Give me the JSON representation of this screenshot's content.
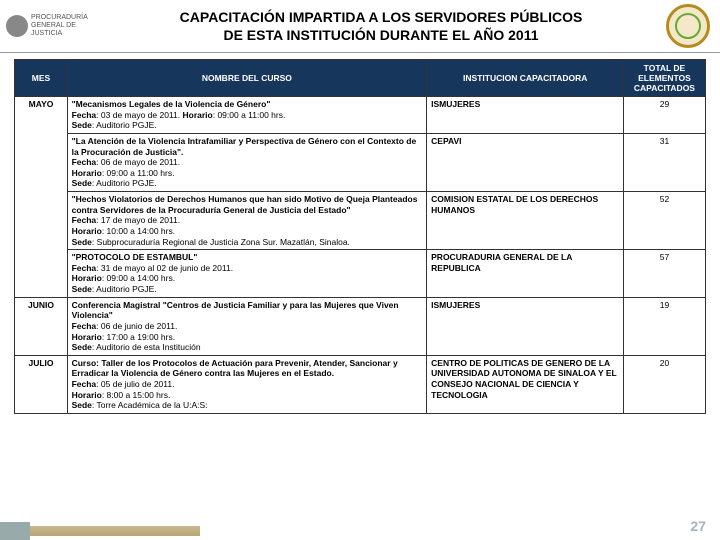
{
  "header": {
    "org": "PROCURADURÍA GENERAL DE JUSTICIA",
    "title_line1": "CAPACITACIÓN IMPARTIDA A LOS SERVIDORES PÚBLICOS",
    "title_line2": "DE ESTA INSTITUCIÓN DURANTE EL AÑO 2011"
  },
  "columns": {
    "mes": "MES",
    "curso": "NOMBRE DEL CURSO",
    "inst": "INSTITUCION CAPACITADORA",
    "total": "TOTAL DE ELEMENTOS CAPACITADOS"
  },
  "rows": [
    {
      "mes": "MAYO",
      "items": [
        {
          "title": "\"Mecanismos Legales de la Violencia de Género\"",
          "fecha": "Fecha: 03 de mayo de 2011. Horario: 09:00 a 11:00 hrs.",
          "sede": "Sede: Auditorio PGJE.",
          "inst": "ISMUJERES",
          "total": "29"
        },
        {
          "title": "\"La Atención de la Violencia Intrafamiliar y Perspectiva de Género con el Contexto de la Procuración de Justicia\".",
          "fecha": "Fecha: 06 de mayo de 2011.",
          "horario": "Horario: 09:00 a 11:00 hrs.",
          "sede": "Sede: Auditorio PGJE.",
          "inst": "CEPAVI",
          "total": "31"
        },
        {
          "title": "\"Hechos Violatorios de Derechos Humanos que han sido Motivo de Queja Planteados contra Servidores de la Procuraduría General de Justicia del Estado\"",
          "fecha": "Fecha: 17 de mayo de 2011.",
          "horario": "Horario: 10:00 a 14:00 hrs.",
          "sede": "Sede: Subprocuraduría Regional de Justicia Zona Sur. Mazatlán, Sinaloa.",
          "inst": "COMISION ESTATAL DE LOS DERECHOS HUMANOS",
          "total": "52"
        },
        {
          "title": "\"PROTOCOLO DE ESTAMBUL\"",
          "fecha": "Fecha: 31 de mayo al 02 de junio de 2011.",
          "horario": "Horario: 09:00 a 14:00 hrs.",
          "sede": "Sede: Auditorio PGJE.",
          "inst": "PROCURADURIA GENERAL DE LA REPUBLICA",
          "total": "57"
        }
      ]
    },
    {
      "mes": "JUNIO",
      "items": [
        {
          "title": "Conferencia Magistral \"Centros de Justicia Familiar y para las Mujeres que Viven Violencia\"",
          "fecha": "Fecha: 06 de junio de 2011.",
          "horario": "Horario: 17:00 a 19:00 hrs.",
          "sede": "Sede: Auditorio de esta Institución",
          "inst": "ISMUJERES",
          "total": "19"
        }
      ]
    },
    {
      "mes": "JULIO",
      "items": [
        {
          "title": "Curso: Taller de los Protocolos de Actuación para Prevenir, Atender, Sancionar y Erradicar la Violencia de Género contra las Mujeres en el Estado.",
          "fecha": "Fecha: 05 de julio de 2011.",
          "horario": "Horario: 8:00 a 15:00 hrs.",
          "sede": "Sede: Torre Académica de la U:A:S:",
          "inst": "CENTRO DE POLITICAS DE GENERO DE LA UNIVERSIDAD AUTONOMA DE SINALOA Y EL CONSEJO NACIONAL DE CIENCIA Y TECNOLOGIA",
          "total": "20"
        }
      ]
    }
  ],
  "page_number": "27"
}
